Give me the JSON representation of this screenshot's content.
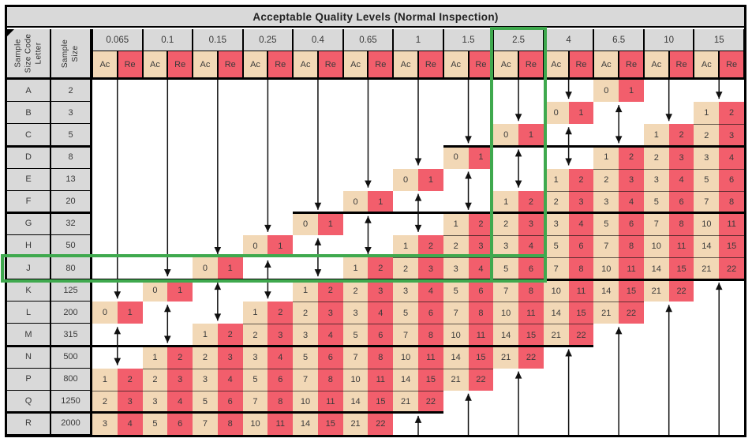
{
  "title": "Acceptable Quality Levels (Normal Inspection)",
  "corner_headers": {
    "code_letter": "Sample\nSize Code\nLetter",
    "sample_size": "Sample\nSize"
  },
  "ac_label": "Ac",
  "re_label": "Re",
  "aql_levels": [
    "0.065",
    "0.1",
    "0.15",
    "0.25",
    "0.4",
    "0.65",
    "1",
    "1.5",
    "2.5",
    "4",
    "6.5",
    "10",
    "15"
  ],
  "rows": [
    {
      "letter": "A",
      "size": "2",
      "cells": [
        null,
        null,
        null,
        null,
        null,
        null,
        null,
        null,
        null,
        null,
        [
          0,
          1
        ],
        null,
        null
      ]
    },
    {
      "letter": "B",
      "size": "3",
      "cells": [
        null,
        null,
        null,
        null,
        null,
        null,
        null,
        null,
        null,
        [
          0,
          1
        ],
        null,
        null,
        [
          1,
          2
        ]
      ]
    },
    {
      "letter": "C",
      "size": "5",
      "cells": [
        null,
        null,
        null,
        null,
        null,
        null,
        null,
        null,
        [
          0,
          1
        ],
        null,
        null,
        [
          1,
          2
        ],
        [
          2,
          3
        ]
      ]
    },
    {
      "letter": "D",
      "size": "8",
      "cells": [
        null,
        null,
        null,
        null,
        null,
        null,
        null,
        [
          0,
          1
        ],
        null,
        null,
        [
          1,
          2
        ],
        [
          2,
          3
        ],
        [
          3,
          4
        ]
      ]
    },
    {
      "letter": "E",
      "size": "13",
      "cells": [
        null,
        null,
        null,
        null,
        null,
        null,
        [
          0,
          1
        ],
        null,
        null,
        [
          1,
          2
        ],
        [
          2,
          3
        ],
        [
          3,
          4
        ],
        [
          5,
          6
        ]
      ]
    },
    {
      "letter": "F",
      "size": "20",
      "cells": [
        null,
        null,
        null,
        null,
        null,
        [
          0,
          1
        ],
        null,
        null,
        [
          1,
          2
        ],
        [
          2,
          3
        ],
        [
          3,
          4
        ],
        [
          5,
          6
        ],
        [
          7,
          8
        ]
      ]
    },
    {
      "letter": "G",
      "size": "32",
      "cells": [
        null,
        null,
        null,
        null,
        [
          0,
          1
        ],
        null,
        null,
        [
          1,
          2
        ],
        [
          2,
          3
        ],
        [
          3,
          4
        ],
        [
          5,
          6
        ],
        [
          7,
          8
        ],
        [
          10,
          11
        ]
      ]
    },
    {
      "letter": "H",
      "size": "50",
      "cells": [
        null,
        null,
        null,
        [
          0,
          1
        ],
        null,
        null,
        [
          1,
          2
        ],
        [
          2,
          3
        ],
        [
          3,
          4
        ],
        [
          5,
          6
        ],
        [
          7,
          8
        ],
        [
          10,
          11
        ],
        [
          14,
          15
        ]
      ]
    },
    {
      "letter": "J",
      "size": "80",
      "cells": [
        null,
        null,
        [
          0,
          1
        ],
        null,
        null,
        [
          1,
          2
        ],
        [
          2,
          3
        ],
        [
          3,
          4
        ],
        [
          5,
          6
        ],
        [
          7,
          8
        ],
        [
          10,
          11
        ],
        [
          14,
          15
        ],
        [
          21,
          22
        ]
      ]
    },
    {
      "letter": "K",
      "size": "125",
      "cells": [
        null,
        [
          0,
          1
        ],
        null,
        null,
        [
          1,
          2
        ],
        [
          2,
          3
        ],
        [
          3,
          4
        ],
        [
          5,
          6
        ],
        [
          7,
          8
        ],
        [
          10,
          11
        ],
        [
          14,
          15
        ],
        [
          21,
          22
        ],
        null
      ]
    },
    {
      "letter": "L",
      "size": "200",
      "cells": [
        [
          0,
          1
        ],
        null,
        null,
        [
          1,
          2
        ],
        [
          2,
          3
        ],
        [
          3,
          4
        ],
        [
          5,
          6
        ],
        [
          7,
          8
        ],
        [
          10,
          11
        ],
        [
          14,
          15
        ],
        [
          21,
          22
        ],
        null,
        null
      ]
    },
    {
      "letter": "M",
      "size": "315",
      "cells": [
        null,
        null,
        [
          1,
          2
        ],
        [
          2,
          3
        ],
        [
          3,
          4
        ],
        [
          5,
          6
        ],
        [
          7,
          8
        ],
        [
          10,
          11
        ],
        [
          14,
          15
        ],
        [
          21,
          22
        ],
        null,
        null,
        null
      ]
    },
    {
      "letter": "N",
      "size": "500",
      "cells": [
        null,
        [
          1,
          2
        ],
        [
          2,
          3
        ],
        [
          3,
          4
        ],
        [
          5,
          6
        ],
        [
          7,
          8
        ],
        [
          10,
          11
        ],
        [
          14,
          15
        ],
        [
          21,
          22
        ],
        null,
        null,
        null,
        null
      ]
    },
    {
      "letter": "P",
      "size": "800",
      "cells": [
        [
          1,
          2
        ],
        [
          2,
          3
        ],
        [
          3,
          4
        ],
        [
          5,
          6
        ],
        [
          7,
          8
        ],
        [
          10,
          11
        ],
        [
          14,
          15
        ],
        [
          21,
          22
        ],
        null,
        null,
        null,
        null,
        null
      ]
    },
    {
      "letter": "Q",
      "size": "1250",
      "cells": [
        [
          2,
          3
        ],
        [
          3,
          4
        ],
        [
          5,
          6
        ],
        [
          7,
          8
        ],
        [
          10,
          11
        ],
        [
          14,
          15
        ],
        [
          21,
          22
        ],
        null,
        null,
        null,
        null,
        null,
        null
      ]
    },
    {
      "letter": "R",
      "size": "2000",
      "cells": [
        [
          3,
          4
        ],
        [
          5,
          6
        ],
        [
          7,
          8
        ],
        [
          10,
          11
        ],
        [
          14,
          15
        ],
        [
          21,
          22
        ],
        null,
        null,
        null,
        null,
        null,
        null,
        null
      ]
    }
  ],
  "arrows": [
    {
      "aql": "0.065",
      "from": "A",
      "to": "K",
      "dir": "down"
    },
    {
      "aql": "0.1",
      "from": "A",
      "to": "J",
      "dir": "down"
    },
    {
      "aql": "0.15",
      "from": "A",
      "to": "H",
      "dir": "down"
    },
    {
      "aql": "0.25",
      "from": "A",
      "to": "G",
      "dir": "down"
    },
    {
      "aql": "0.4",
      "from": "A",
      "to": "F",
      "dir": "down"
    },
    {
      "aql": "0.65",
      "from": "A",
      "to": "E",
      "dir": "down"
    },
    {
      "aql": "1",
      "from": "A",
      "to": "D",
      "dir": "down"
    },
    {
      "aql": "1.5",
      "from": "A",
      "to": "C",
      "dir": "down"
    },
    {
      "aql": "2.5",
      "from": "A",
      "to": "B",
      "dir": "down"
    },
    {
      "aql": "4",
      "from": "A",
      "to": "A",
      "dir": "down"
    },
    {
      "aql": "10",
      "from": "A",
      "to": "B",
      "dir": "down"
    },
    {
      "aql": "15",
      "from": "A",
      "to": "A",
      "dir": "down"
    },
    {
      "aql": "0.065",
      "from": "M",
      "to": "N",
      "dir": "both"
    },
    {
      "aql": "0.1",
      "from": "L",
      "to": "M",
      "dir": "both"
    },
    {
      "aql": "0.15",
      "from": "K",
      "to": "L",
      "dir": "both"
    },
    {
      "aql": "0.25",
      "from": "J",
      "to": "K",
      "dir": "both"
    },
    {
      "aql": "0.4",
      "from": "H",
      "to": "J",
      "dir": "both"
    },
    {
      "aql": "0.65",
      "from": "G",
      "to": "H",
      "dir": "both"
    },
    {
      "aql": "1",
      "from": "F",
      "to": "G",
      "dir": "both"
    },
    {
      "aql": "1.5",
      "from": "E",
      "to": "F",
      "dir": "both"
    },
    {
      "aql": "2.5",
      "from": "D",
      "to": "E",
      "dir": "both"
    },
    {
      "aql": "4",
      "from": "C",
      "to": "D",
      "dir": "both"
    },
    {
      "aql": "6.5",
      "from": "B",
      "to": "C",
      "dir": "both"
    },
    {
      "aql": "1",
      "from": "R",
      "to": "R",
      "dir": "up"
    },
    {
      "aql": "1.5",
      "from": "Q",
      "to": "R",
      "dir": "up"
    },
    {
      "aql": "2.5",
      "from": "P",
      "to": "R",
      "dir": "up"
    },
    {
      "aql": "4",
      "from": "N",
      "to": "R",
      "dir": "up"
    },
    {
      "aql": "6.5",
      "from": "M",
      "to": "R",
      "dir": "up"
    },
    {
      "aql": "10",
      "from": "L",
      "to": "R",
      "dir": "up"
    },
    {
      "aql": "15",
      "from": "K",
      "to": "R",
      "dir": "up"
    }
  ],
  "highlight": {
    "row_letter": "J",
    "aql": "2.5",
    "color": "#3FA94E"
  },
  "colors": {
    "header_bg": "#d9d9d9",
    "ac_bg": "#f2d8b6",
    "re_bg": "#f25e6c",
    "grid_line": "#000000",
    "arrow": "#111111",
    "text": "#3a3a3a"
  }
}
